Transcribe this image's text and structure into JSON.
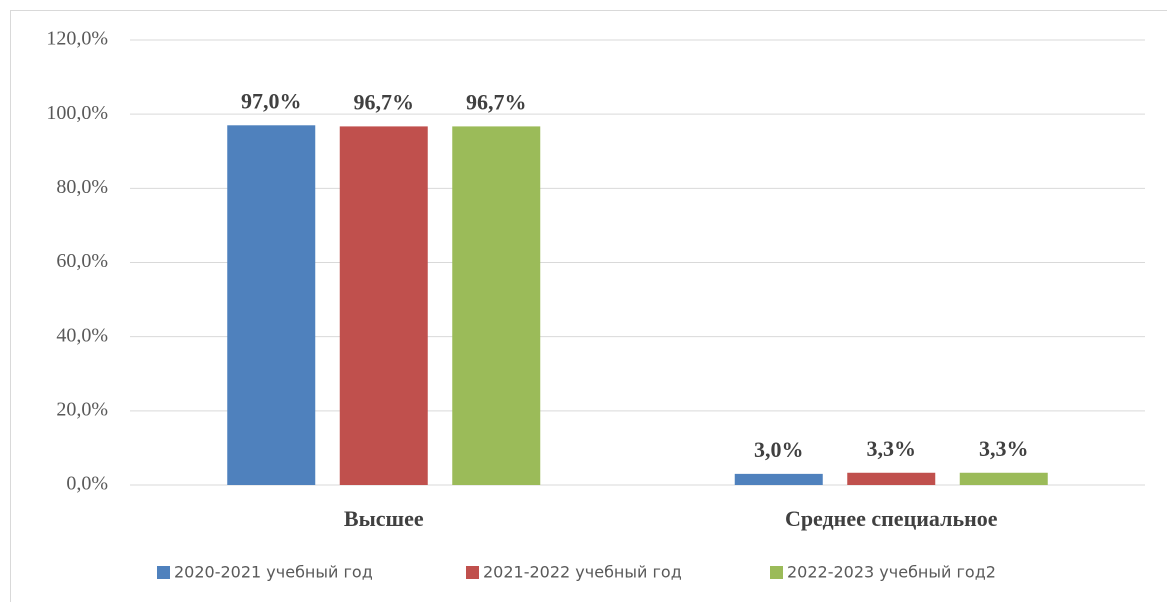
{
  "chart_data": {
    "type": "bar",
    "categories": [
      "Высшее",
      "Среднее специальное"
    ],
    "series": [
      {
        "name": "2020-2021 учебный год",
        "color": "#4f81bd",
        "values": [
          97.0,
          3.0
        ],
        "value_labels": [
          "97,0%",
          "3,0%"
        ]
      },
      {
        "name": "2021-2022 учебный год",
        "color": "#c0504d",
        "values": [
          96.7,
          3.3
        ],
        "value_labels": [
          "96,7%",
          "3,3%"
        ]
      },
      {
        "name": "2022-2023 учебный год2",
        "color": "#9bbb59",
        "values": [
          96.7,
          3.3
        ],
        "value_labels": [
          "96,7%",
          "3,3%"
        ]
      }
    ],
    "ylim": [
      0,
      120
    ],
    "yticks": [
      {
        "value": 0,
        "label": "0,0%"
      },
      {
        "value": 20,
        "label": "20,0%"
      },
      {
        "value": 40,
        "label": "40,0%"
      },
      {
        "value": 60,
        "label": "60,0%"
      },
      {
        "value": 80,
        "label": "80,0%"
      },
      {
        "value": 100,
        "label": "100,0%"
      },
      {
        "value": 120,
        "label": "120,0%"
      }
    ],
    "grid": true,
    "legend": "bottom"
  }
}
